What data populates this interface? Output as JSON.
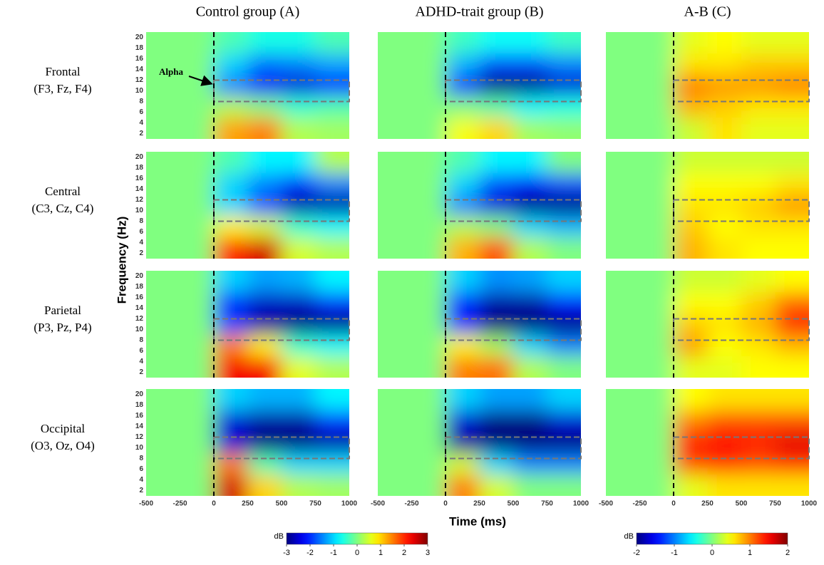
{
  "chart_data": {
    "type": "heatmap",
    "column_titles": [
      "Control group (A)",
      "ADHD-trait group (B)",
      "A-B (C)"
    ],
    "row_labels": [
      [
        "Frontal",
        "(F3, Fz, F4)"
      ],
      [
        "Central",
        "(C3, Cz, C4)"
      ],
      [
        "Parietal",
        "(P3, Pz, P4)"
      ],
      [
        "Occipital",
        "(O3, Oz, O4)"
      ]
    ],
    "x_label": "Time (ms)",
    "y_label": "Frequency (Hz)",
    "annotation": "Alpha",
    "xlim": [
      -500,
      1000
    ],
    "xticks": [
      -500,
      -250,
      0,
      250,
      500,
      750,
      1000
    ],
    "ylim": [
      1,
      21
    ],
    "yticks": [
      2,
      4,
      6,
      8,
      10,
      12,
      14,
      16,
      18,
      20
    ],
    "x": [
      -375,
      -125,
      125,
      375,
      625,
      875
    ],
    "y": [
      3,
      7,
      11,
      15,
      19
    ],
    "onset": 0,
    "alpha_box": {
      "xlim": [
        0,
        1000
      ],
      "ylim": [
        8,
        12
      ]
    },
    "colorbars": [
      {
        "label": "dB",
        "clim": [
          -3,
          3
        ],
        "ticks": [
          -3,
          -2,
          -1,
          0,
          1,
          2,
          3
        ]
      },
      {
        "label": "dB",
        "clim": [
          -2,
          2
        ],
        "ticks": [
          -2,
          -1,
          0,
          1,
          2
        ]
      }
    ],
    "panels": [
      [
        {
          "values": [
            [
              0,
              0,
              1.3,
              1.5,
              0.3,
              0.2
            ],
            [
              0,
              0,
              0.3,
              0,
              -0.5,
              -0.3
            ],
            [
              0,
              0,
              -1.5,
              -2.3,
              -2.5,
              -2.2
            ],
            [
              0,
              0,
              -1,
              -1.6,
              -1.5,
              -1.3
            ],
            [
              0,
              0,
              -0.3,
              -0.6,
              -0.6,
              -0.3
            ]
          ]
        },
        {
          "values": [
            [
              0,
              0,
              0.7,
              1,
              0.2,
              0.1
            ],
            [
              0,
              0,
              0,
              -0.3,
              -0.8,
              -0.6
            ],
            [
              0,
              0,
              -2,
              -3,
              -3,
              -2.5
            ],
            [
              0,
              0,
              -1.2,
              -1.8,
              -1.8,
              -1.5
            ],
            [
              0,
              0,
              -0.4,
              -0.7,
              -0.7,
              -0.4
            ]
          ]
        },
        {
          "values": [
            [
              0,
              0,
              0.3,
              0.6,
              0.4,
              0.4
            ],
            [
              0,
              0,
              0.8,
              0.7,
              0.6,
              0.6
            ],
            [
              0,
              0,
              1,
              0.9,
              0.9,
              1
            ],
            [
              0,
              0,
              0.6,
              0.6,
              0.7,
              0.7
            ],
            [
              0,
              0,
              0.4,
              0.5,
              0.4,
              0.4
            ]
          ]
        }
      ],
      [
        {
          "values": [
            [
              0,
              0,
              2,
              2.5,
              0.5,
              0.3
            ],
            [
              0,
              0,
              0.8,
              0.5,
              -0.5,
              -0.8
            ],
            [
              0,
              0,
              -1,
              -1.8,
              -2.8,
              -2.8
            ],
            [
              0,
              0,
              -1,
              -1.5,
              -2,
              -1.5
            ],
            [
              0,
              0,
              -0.3,
              -0.8,
              -0.8,
              0.3
            ]
          ]
        },
        {
          "values": [
            [
              0,
              0,
              1.2,
              1.8,
              0.3,
              0
            ],
            [
              0,
              0,
              0.3,
              0,
              -1,
              -1.2
            ],
            [
              0,
              0,
              -1.5,
              -2.5,
              -3,
              -3
            ],
            [
              0,
              0,
              -1,
              -1.8,
              -2.2,
              -1.8
            ],
            [
              0,
              0,
              -0.3,
              -0.8,
              -0.8,
              0
            ]
          ]
        },
        {
          "values": [
            [
              0,
              0,
              0.8,
              0.6,
              0.5,
              0.5
            ],
            [
              0,
              0,
              0.7,
              0.5,
              0.6,
              0.6
            ],
            [
              0,
              0,
              0.6,
              0.6,
              0.7,
              0.9
            ],
            [
              0,
              0,
              0.5,
              0.5,
              0.5,
              0.6
            ],
            [
              0,
              0,
              0.3,
              0.3,
              0.3,
              0.3
            ]
          ]
        }
      ],
      [
        {
          "values": [
            [
              0,
              0,
              2.3,
              2.3,
              0.6,
              0.3
            ],
            [
              0,
              0,
              1.5,
              0.8,
              -0.5,
              -0.8
            ],
            [
              0,
              0,
              -1.8,
              -2.8,
              -3,
              -3
            ],
            [
              0,
              0,
              -2.2,
              -2.6,
              -2.6,
              -2
            ],
            [
              0,
              0,
              -1,
              -1.3,
              -1.2,
              -0.8
            ]
          ]
        },
        {
          "values": [
            [
              0,
              0,
              1.5,
              1.6,
              0.3,
              0
            ],
            [
              0,
              0,
              0.8,
              0.2,
              -1,
              -1.5
            ],
            [
              0,
              0,
              -2,
              -3,
              -3,
              -3
            ],
            [
              0,
              0,
              -2.2,
              -2.8,
              -2.8,
              -2.2
            ],
            [
              0,
              0,
              -1,
              -1.4,
              -1.3,
              -1
            ]
          ]
        },
        {
          "values": [
            [
              0,
              0,
              0.4,
              0.4,
              0.5,
              0.5
            ],
            [
              0,
              0,
              0.9,
              0.5,
              0.6,
              0.8
            ],
            [
              0,
              0,
              0.7,
              0.6,
              0.8,
              1.4
            ],
            [
              0,
              0,
              0.5,
              0.5,
              0.7,
              1.1
            ],
            [
              0,
              0,
              0.3,
              0.3,
              0.4,
              0.5
            ]
          ]
        }
      ],
      [
        {
          "values": [
            [
              0,
              0,
              2.5,
              1,
              0.3,
              0.2
            ],
            [
              0,
              0,
              1.5,
              -0.3,
              -1,
              -1
            ],
            [
              0,
              0,
              -2.5,
              -3,
              -3,
              -2.8
            ],
            [
              0,
              0,
              -2.5,
              -2.8,
              -2.8,
              -2
            ],
            [
              0,
              0,
              -1,
              -1.2,
              -1.2,
              -0.8
            ]
          ]
        },
        {
          "values": [
            [
              0,
              0,
              1.5,
              0.5,
              0,
              0
            ],
            [
              0,
              0,
              0.5,
              -1,
              -1.5,
              -1.5
            ],
            [
              0,
              0,
              -2.8,
              -3,
              -3,
              -3
            ],
            [
              0,
              0,
              -2.5,
              -3,
              -3,
              -2.5
            ],
            [
              0,
              0,
              -1,
              -1.3,
              -1.3,
              -1
            ]
          ]
        },
        {
          "values": [
            [
              0,
              0,
              0.4,
              0.6,
              0.6,
              0.6
            ],
            [
              0,
              0,
              1.2,
              1.3,
              1.2,
              1.3
            ],
            [
              0,
              0,
              1.4,
              1.5,
              1.4,
              1.6
            ],
            [
              0,
              0,
              1,
              1.2,
              1.2,
              1.2
            ],
            [
              0,
              0,
              0.5,
              0.6,
              0.6,
              0.6
            ]
          ]
        }
      ]
    ]
  }
}
